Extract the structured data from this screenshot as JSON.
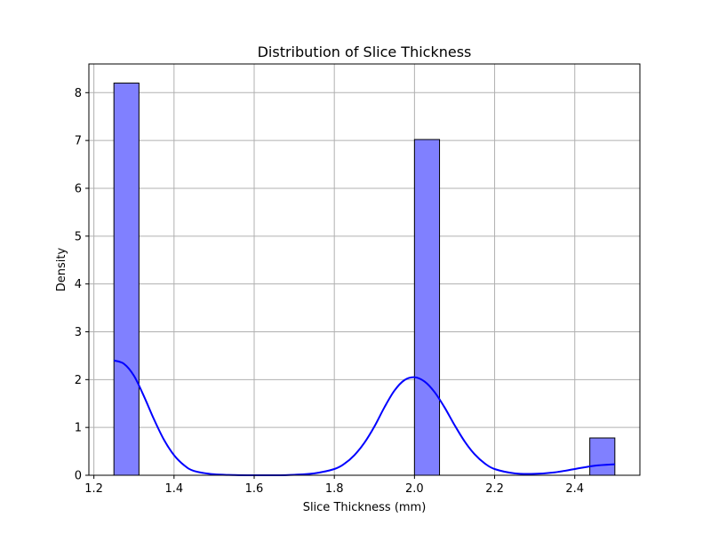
{
  "chart_data": {
    "type": "bar",
    "title": "Distribution of Slice Thickness",
    "xlabel": "Slice Thickness (mm)",
    "ylabel": "Density",
    "xlim": [
      1.1875,
      2.5625
    ],
    "ylim": [
      0,
      8.6
    ],
    "x_ticks": [
      1.2,
      1.4,
      1.6,
      1.8,
      2.0,
      2.2,
      2.4
    ],
    "x_tick_labels": [
      "1.2",
      "1.4",
      "1.6",
      "1.8",
      "2.0",
      "2.2",
      "2.4"
    ],
    "y_ticks": [
      0,
      1,
      2,
      3,
      4,
      5,
      6,
      7,
      8
    ],
    "y_tick_labels": [
      "0",
      "1",
      "2",
      "3",
      "4",
      "5",
      "6",
      "7",
      "8"
    ],
    "grid": true,
    "bins": [
      {
        "x0": 1.25,
        "x1": 1.3125,
        "density": 8.2
      },
      {
        "x0": 1.9375,
        "x1": 2.0,
        "density": 0.0
      },
      {
        "x0": 2.0,
        "x1": 2.0625,
        "density": 7.02
      },
      {
        "x0": 2.4375,
        "x1": 2.5,
        "density": 0.78
      }
    ],
    "kde": {
      "x": [
        1.25,
        1.275,
        1.3,
        1.325,
        1.35,
        1.375,
        1.4,
        1.425,
        1.45,
        1.5,
        1.55,
        1.6,
        1.65,
        1.7,
        1.75,
        1.8,
        1.825,
        1.85,
        1.875,
        1.9,
        1.925,
        1.95,
        1.975,
        2.0,
        2.025,
        2.05,
        2.075,
        2.1,
        2.125,
        2.15,
        2.175,
        2.2,
        2.25,
        2.3,
        2.35,
        2.4,
        2.45,
        2.5
      ],
      "y": [
        2.4,
        2.33,
        2.08,
        1.65,
        1.17,
        0.74,
        0.42,
        0.21,
        0.09,
        0.02,
        0.005,
        0.0,
        0.0,
        0.01,
        0.04,
        0.13,
        0.24,
        0.42,
        0.68,
        1.02,
        1.42,
        1.77,
        1.99,
        2.05,
        1.96,
        1.74,
        1.42,
        1.05,
        0.71,
        0.44,
        0.25,
        0.13,
        0.04,
        0.03,
        0.06,
        0.13,
        0.2,
        0.23
      ]
    },
    "colors": {
      "bar_fill": "#8080ff",
      "bar_edge": "#000000",
      "kde_line": "#0000ff",
      "grid": "#b0b0b0"
    }
  }
}
